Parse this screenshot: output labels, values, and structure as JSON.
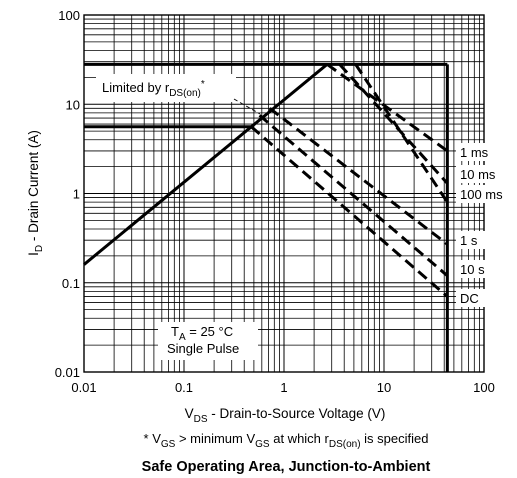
{
  "chart_data": {
    "type": "line",
    "title": "Safe Operating Area, Junction-to-Ambient",
    "xlabel": {
      "prefix": "V",
      "sub": "DS",
      "text": " - Drain-to-Source Voltage (V)"
    },
    "ylabel": {
      "prefix": "I",
      "sub": "D",
      "text": " - Drain Current (A)"
    },
    "footnote": {
      "p1": "* V",
      "s1": "GS",
      "p2": " > minimum V",
      "s2": "GS",
      "p3": " at which r",
      "s3": "DS(on)",
      "p4": " is specified"
    },
    "xscale": "log",
    "yscale": "log",
    "xlim": [
      0.01,
      100
    ],
    "ylim": [
      0.01,
      100
    ],
    "grid": true,
    "x_tick_labels": [
      "0.01",
      "0.1",
      "1",
      "10",
      "100"
    ],
    "y_tick_labels": [
      "0.01",
      "0.1",
      "1",
      "10",
      "100"
    ],
    "annotations": {
      "limit": {
        "text": "Limited by r",
        "sub": "DS(on)",
        "suffix": "*"
      },
      "cond1": {
        "prefix": "T",
        "sub": "A",
        "text": " = 25 °C"
      },
      "cond2": "Single Pulse"
    },
    "limits": {
      "rds_on_line": {
        "x": [
          0.01,
          2.7
        ],
        "y": [
          0.16,
          28
        ]
      },
      "current_limit_high": 28,
      "current_limit_low": 5.6,
      "vds_max": 43
    },
    "series": [
      {
        "name": "1 ms",
        "x": [
          2.7,
          43
        ],
        "y": [
          28,
          3.0
        ]
      },
      {
        "name": "10 ms",
        "x": [
          3.6,
          43
        ],
        "y": [
          28,
          1.3
        ]
      },
      {
        "name": "100 ms",
        "x": [
          5.2,
          43
        ],
        "y": [
          28,
          0.8
        ]
      },
      {
        "name": "1 s",
        "x": [
          0.72,
          43
        ],
        "y": [
          9.0,
          0.27
        ]
      },
      {
        "name": "10 s",
        "x": [
          0.57,
          43
        ],
        "y": [
          7.5,
          0.12
        ]
      },
      {
        "name": "DC",
        "x": [
          0.47,
          43
        ],
        "y": [
          5.6,
          0.07
        ]
      }
    ]
  }
}
